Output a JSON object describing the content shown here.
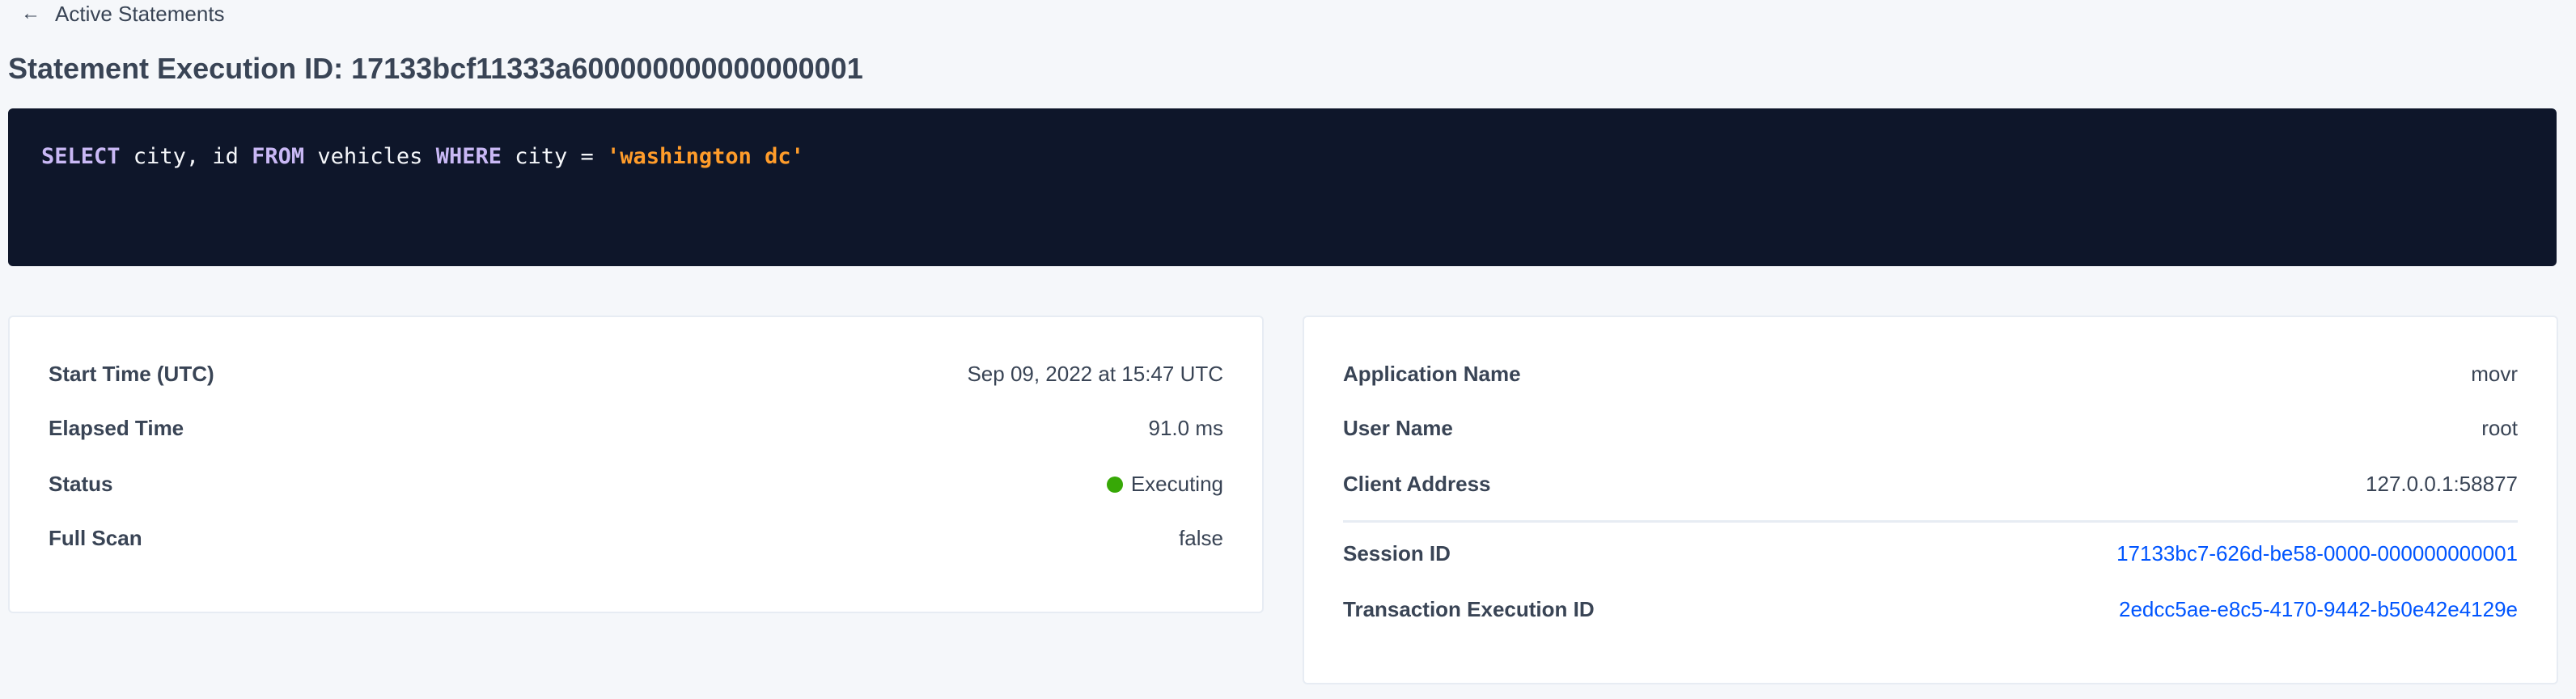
{
  "breadcrumb": {
    "back_label": "Active Statements",
    "icon": "arrow-left-icon"
  },
  "title": "Statement Execution ID: 17133bcf11333a600000000000000001",
  "sql": {
    "tokens": [
      {
        "t": "SELECT",
        "k": "kw"
      },
      {
        "t": " city, id ",
        "k": ""
      },
      {
        "t": "FROM",
        "k": "kw"
      },
      {
        "t": " vehicles ",
        "k": ""
      },
      {
        "t": "WHERE",
        "k": "kw"
      },
      {
        "t": " city = ",
        "k": ""
      },
      {
        "t": "'washington dc'",
        "k": "str"
      }
    ]
  },
  "summary": {
    "start_time_label": "Start Time (UTC)",
    "start_time": "Sep 09, 2022 at 15:47 UTC",
    "elapsed_label": "Elapsed Time",
    "elapsed": "91.0 ms",
    "status_label": "Status",
    "status": "Executing",
    "status_color": "#37a806",
    "full_scan_label": "Full Scan",
    "full_scan": "false"
  },
  "details": {
    "app_label": "Application Name",
    "app": "movr",
    "user_label": "User Name",
    "user": "root",
    "client_label": "Client Address",
    "client": "127.0.0.1:58877",
    "session_label": "Session ID",
    "session": "17133bc7-626d-be58-0000-000000000001",
    "txn_label": "Transaction Execution ID",
    "txn": "2edcc5ae-e8c5-4170-9442-b50e42e4129e"
  }
}
